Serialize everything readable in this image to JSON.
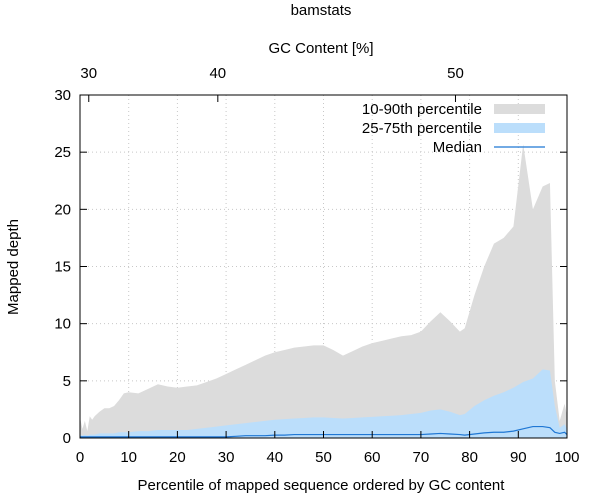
{
  "chart_data": {
    "type": "area",
    "title": "bamstats",
    "xlabel": "Percentile of mapped sequence ordered by GC content",
    "ylabel": "Mapped depth",
    "x2label": "GC Content [%]",
    "xlim": [
      0,
      100
    ],
    "ylim": [
      0,
      30
    ],
    "x_ticks": [
      0,
      10,
      20,
      30,
      40,
      50,
      60,
      70,
      80,
      90,
      100
    ],
    "y_ticks": [
      0,
      5,
      10,
      15,
      20,
      25,
      30
    ],
    "x2_ticks": [
      {
        "label": "30",
        "x": 1.8
      },
      {
        "label": "40",
        "x": 28.3
      },
      {
        "label": "50",
        "x": 77.1
      }
    ],
    "grid": true,
    "legend_position": "top-right",
    "colors": {
      "band_10_90": "#dcdcdc",
      "band_25_75": "#bbdefb",
      "median": "#1f77d4"
    },
    "x": [
      0,
      0.5,
      1,
      1.5,
      2,
      2.5,
      3,
      4,
      5,
      6,
      7,
      8,
      9,
      10,
      12,
      14,
      16,
      18,
      20,
      22,
      24,
      26,
      28,
      30,
      32,
      34,
      36,
      38,
      40,
      42,
      44,
      46,
      48,
      50,
      52,
      54,
      56,
      58,
      60,
      62,
      64,
      66,
      68,
      70,
      72,
      74,
      76,
      78,
      79,
      81,
      83,
      85,
      87,
      89,
      91,
      93,
      95,
      96.5,
      97.5,
      98.5,
      99.5,
      100
    ],
    "series": [
      {
        "name": "10-90th percentile",
        "kind": "band",
        "lower": [
          0,
          0,
          0,
          0,
          0,
          0,
          0,
          0,
          0,
          0,
          0,
          0,
          0,
          0,
          0,
          0,
          0,
          0,
          0,
          0,
          0,
          0,
          0,
          0,
          0,
          0,
          0,
          0,
          0,
          0,
          0,
          0,
          0,
          0,
          0,
          0,
          0,
          0,
          0,
          0,
          0,
          0,
          0,
          0,
          0,
          0,
          0,
          0,
          0,
          0,
          0,
          0,
          0,
          0,
          0,
          0,
          0,
          0,
          0,
          0,
          0,
          0
        ],
        "upper": [
          1.8,
          0.8,
          1.5,
          0.6,
          1.9,
          1.6,
          1.9,
          2.3,
          2.6,
          2.6,
          2.8,
          3.3,
          3.9,
          4.0,
          3.9,
          4.3,
          4.7,
          4.5,
          4.4,
          4.5,
          4.6,
          4.9,
          5.2,
          5.6,
          6.0,
          6.4,
          6.8,
          7.2,
          7.5,
          7.7,
          7.9,
          8.0,
          8.1,
          8.1,
          7.7,
          7.2,
          7.6,
          8.0,
          8.3,
          8.5,
          8.7,
          8.9,
          9.0,
          9.3,
          10.2,
          11.0,
          10.2,
          9.3,
          9.6,
          12.5,
          15.0,
          17.0,
          17.5,
          18.5,
          25.7,
          20.0,
          22.0,
          22.3,
          5.0,
          1.5,
          3.0,
          2.0
        ]
      },
      {
        "name": "25-75th percentile",
        "kind": "band",
        "lower": [
          0,
          0,
          0,
          0,
          0,
          0,
          0,
          0,
          0,
          0,
          0,
          0,
          0,
          0,
          0,
          0,
          0,
          0,
          0,
          0,
          0,
          0,
          0,
          0,
          0,
          0,
          0,
          0,
          0,
          0,
          0,
          0,
          0,
          0,
          0,
          0,
          0,
          0,
          0,
          0,
          0,
          0,
          0,
          0,
          0,
          0,
          0,
          0,
          0,
          0,
          0,
          0,
          0,
          0,
          0,
          0,
          0,
          0,
          0,
          0,
          0,
          0
        ],
        "upper": [
          0.3,
          0.2,
          0.3,
          0.2,
          0.3,
          0.3,
          0.3,
          0.4,
          0.4,
          0.4,
          0.4,
          0.5,
          0.5,
          0.5,
          0.6,
          0.6,
          0.7,
          0.7,
          0.7,
          0.7,
          0.8,
          0.9,
          1.0,
          1.1,
          1.2,
          1.3,
          1.4,
          1.5,
          1.6,
          1.65,
          1.7,
          1.75,
          1.8,
          1.8,
          1.75,
          1.7,
          1.75,
          1.8,
          1.85,
          1.9,
          1.95,
          2.0,
          2.1,
          2.2,
          2.4,
          2.5,
          2.3,
          2.0,
          2.1,
          2.8,
          3.3,
          3.7,
          4.0,
          4.4,
          4.9,
          5.2,
          6.0,
          5.9,
          2.8,
          0.9,
          1.2,
          0.8
        ]
      },
      {
        "name": "Median",
        "kind": "line",
        "values": [
          0.1,
          0.1,
          0.1,
          0.1,
          0.1,
          0.1,
          0.1,
          0.1,
          0.1,
          0.1,
          0.1,
          0.1,
          0.1,
          0.1,
          0.1,
          0.1,
          0.1,
          0.1,
          0.1,
          0.1,
          0.1,
          0.1,
          0.1,
          0.1,
          0.15,
          0.2,
          0.2,
          0.2,
          0.25,
          0.25,
          0.3,
          0.3,
          0.3,
          0.3,
          0.3,
          0.3,
          0.3,
          0.3,
          0.3,
          0.3,
          0.3,
          0.3,
          0.3,
          0.3,
          0.35,
          0.4,
          0.35,
          0.3,
          0.25,
          0.35,
          0.45,
          0.5,
          0.5,
          0.6,
          0.8,
          1.0,
          1.0,
          0.9,
          0.5,
          0.4,
          0.5,
          0.3
        ]
      }
    ]
  }
}
